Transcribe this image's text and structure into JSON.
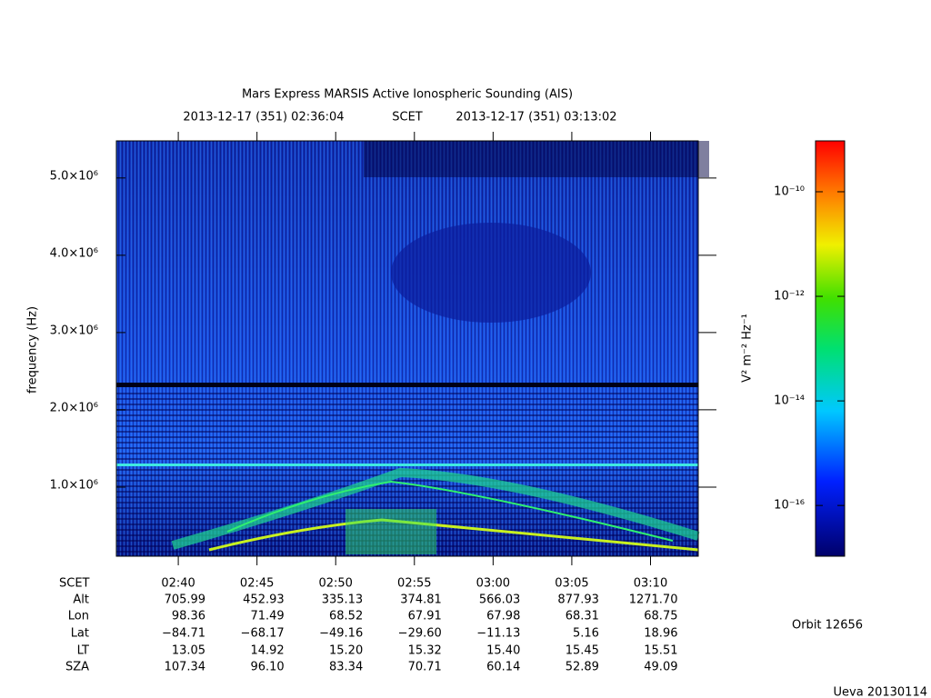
{
  "chart_data": {
    "type": "spectrogram",
    "title": "Mars Express MARSIS Active Ionospheric Sounding (AIS)",
    "time_start": "2013-12-17 (351) 02:36:04",
    "time_label": "SCET",
    "time_end": "2013-12-17 (351) 03:13:02",
    "ylabel": "frequency (Hz)",
    "xlim": [
      156.067,
      193.033
    ],
    "xticks": [
      {
        "value": 160,
        "label": "02:40"
      },
      {
        "value": 165,
        "label": "02:45"
      },
      {
        "value": 170,
        "label": "02:50"
      },
      {
        "value": 175,
        "label": "02:55"
      },
      {
        "value": 180,
        "label": "03:00"
      },
      {
        "value": 185,
        "label": "03:05"
      },
      {
        "value": 190,
        "label": "03:10"
      }
    ],
    "ylim": [
      106000,
      5480000
    ],
    "yticks": [
      {
        "value": 1000000,
        "label": "1.0×10⁶"
      },
      {
        "value": 2000000,
        "label": "2.0×10⁶"
      },
      {
        "value": 3000000,
        "label": "3.0×10⁶"
      },
      {
        "value": 4000000,
        "label": "4.0×10⁶"
      },
      {
        "value": 5000000,
        "label": "5.0×10⁶"
      }
    ],
    "ephemeris": {
      "time_row_label": "SCET",
      "labels": [
        "Alt",
        "Lon",
        "Lat",
        "LT",
        "SZA"
      ],
      "rows": [
        [
          "705.99",
          "452.93",
          "335.13",
          "374.81",
          "566.03",
          "877.93",
          "1271.70"
        ],
        [
          "98.36",
          "71.49",
          "68.52",
          "67.91",
          "67.98",
          "68.31",
          "68.75"
        ],
        [
          "−84.71",
          "−68.17",
          "−49.16",
          "−29.60",
          "−11.13",
          "5.16",
          "18.96"
        ],
        [
          "13.05",
          "14.92",
          "15.20",
          "15.32",
          "15.40",
          "15.45",
          "15.51"
        ],
        [
          "107.34",
          "96.10",
          "83.34",
          "70.71",
          "60.14",
          "52.89",
          "49.09"
        ]
      ]
    },
    "colorbar": {
      "label": "V² m⁻² Hz⁻¹",
      "log": true,
      "lim": [
        1.07e-17,
        9.4e-10
      ],
      "ticks": [
        {
          "value": 1e-10,
          "label": "10⁻¹⁰"
        },
        {
          "value": 1e-12,
          "label": "10⁻¹²"
        },
        {
          "value": 1e-14,
          "label": "10⁻¹⁴"
        },
        {
          "value": 1e-16,
          "label": "10⁻¹⁶"
        }
      ]
    },
    "orbit": "Orbit 12656",
    "footer": "Ueva 20130114"
  }
}
